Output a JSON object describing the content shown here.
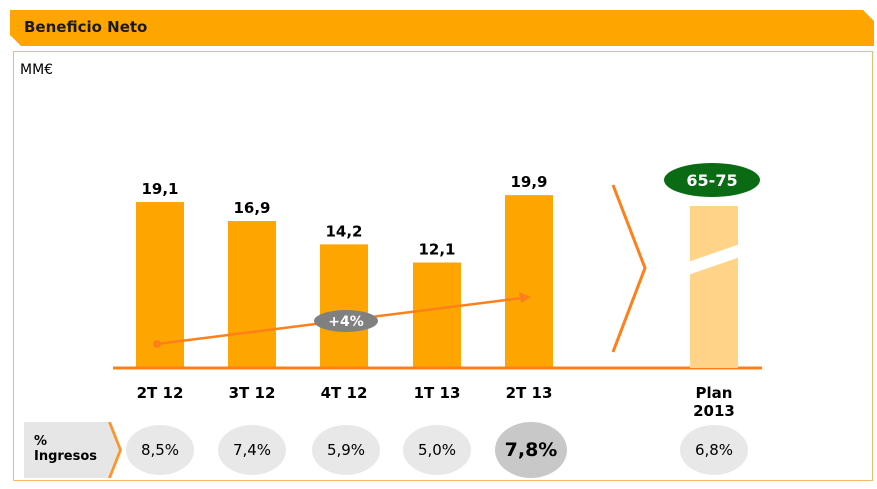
{
  "header": {
    "title": "Beneficio Neto"
  },
  "chart_data": {
    "type": "bar",
    "unit": "MM€",
    "categories": [
      "2T 12",
      "3T 12",
      "4T 12",
      "1T 13",
      "2T 13"
    ],
    "values": [
      19.1,
      16.9,
      14.2,
      12.1,
      19.9
    ],
    "value_labels": [
      "19,1",
      "16,9",
      "14,2",
      "12,1",
      "19,9"
    ],
    "ylim": [
      0,
      22
    ],
    "bar_color": "#FFA500",
    "trend": {
      "label": "+4%",
      "color": "#FF7F1A",
      "badge_color": "#808080"
    },
    "plan": {
      "label_line1": "Plan",
      "label_line2": "2013",
      "range_label": "65-75",
      "bar_color": "#FFD488",
      "badge_color": "#0A6B14"
    }
  },
  "ingresos": {
    "label_line1": "%",
    "label_line2": "Ingresos",
    "values": [
      "8,5%",
      "7,4%",
      "5,9%",
      "5,0%",
      "7,8%",
      "6,8%"
    ],
    "highlight_index": 4
  }
}
